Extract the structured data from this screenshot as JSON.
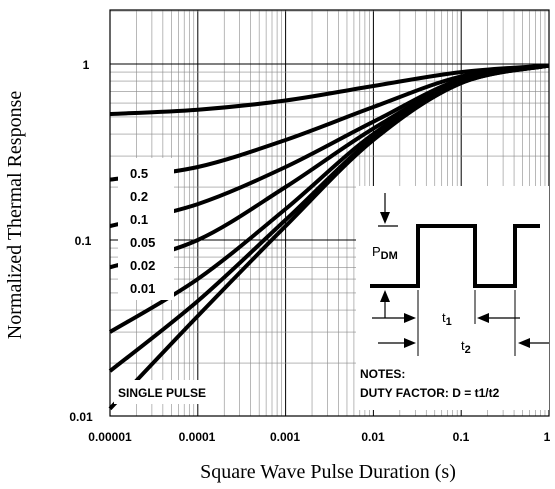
{
  "chart_data": {
    "type": "line",
    "title": "",
    "xlabel": "Square Wave Pulse Duration (s)",
    "ylabel": "Normalized Thermal Response",
    "xscale": "log",
    "yscale": "log",
    "xlim": [
      1e-05,
      1
    ],
    "ylim": [
      0.01,
      2
    ],
    "grid": true,
    "xticks": [
      "0.00001",
      "0.0001",
      "0.001",
      "0.01",
      "0.1",
      "1"
    ],
    "yticks": [
      "0.01",
      "0.1",
      "1"
    ],
    "legend": [
      "0.5",
      "0.2",
      "0.1",
      "0.05",
      "0.02",
      "0.01"
    ],
    "series": [
      {
        "name": "0.5",
        "x": [
          1e-05,
          0.0001,
          0.001,
          0.01,
          0.1,
          1
        ],
        "values": [
          0.52,
          0.55,
          0.62,
          0.75,
          0.9,
          0.98
        ]
      },
      {
        "name": "0.2",
        "x": [
          1e-05,
          0.0001,
          0.001,
          0.01,
          0.1,
          1
        ],
        "values": [
          0.22,
          0.26,
          0.37,
          0.57,
          0.85,
          0.98
        ]
      },
      {
        "name": "0.1",
        "x": [
          1e-05,
          0.0001,
          0.001,
          0.01,
          0.1,
          1
        ],
        "values": [
          0.12,
          0.16,
          0.26,
          0.47,
          0.82,
          0.98
        ]
      },
      {
        "name": "0.05",
        "x": [
          1e-05,
          0.0001,
          0.001,
          0.01,
          0.1,
          1
        ],
        "values": [
          0.07,
          0.1,
          0.2,
          0.43,
          0.8,
          0.98
        ]
      },
      {
        "name": "0.02",
        "x": [
          1e-05,
          0.0001,
          0.001,
          0.01,
          0.1,
          1
        ],
        "values": [
          0.03,
          0.06,
          0.15,
          0.4,
          0.79,
          0.98
        ]
      },
      {
        "name": "0.01",
        "x": [
          1e-05,
          0.0001,
          0.001,
          0.01,
          0.1,
          1
        ],
        "values": [
          0.018,
          0.045,
          0.13,
          0.38,
          0.78,
          0.98
        ]
      },
      {
        "name": "SINGLE PULSE",
        "x": [
          1e-05,
          0.0001,
          0.001,
          0.01,
          0.1,
          1
        ],
        "values": [
          0.011,
          0.037,
          0.12,
          0.37,
          0.78,
          0.98
        ]
      }
    ],
    "single_pulse_label": "SINGLE PULSE",
    "inset": {
      "pdm_main": "P",
      "pdm_sub": "DM",
      "t1_main": "t",
      "t1_sub": "1",
      "t2_main": "t",
      "t2_sub": "2"
    },
    "notes": {
      "title": "NOTES:",
      "duty_factor": "DUTY FACTOR: D = t1/t2"
    }
  }
}
